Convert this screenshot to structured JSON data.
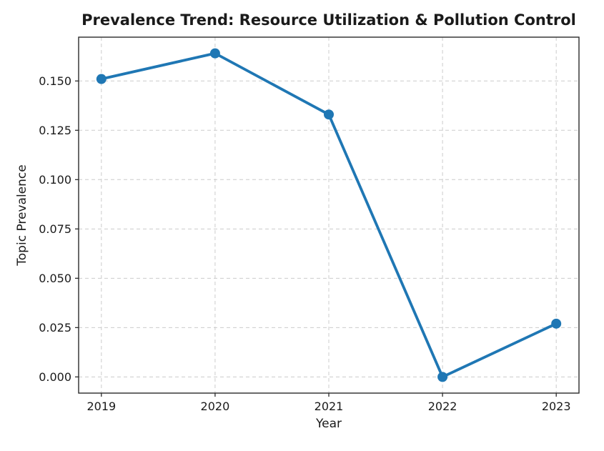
{
  "figure": {
    "background_color": "#ffffff",
    "text_color": "#1a1a1a"
  },
  "chart_data": {
    "type": "line",
    "title": "Prevalence Trend: Resource Utilization & Pollution Control",
    "xlabel": "Year",
    "ylabel": "Topic Prevalence",
    "x": [
      2019,
      2020,
      2021,
      2022,
      2023
    ],
    "series": [
      {
        "name": "Topic Prevalence",
        "values": [
          0.151,
          0.164,
          0.133,
          0.0,
          0.027
        ]
      }
    ],
    "xticks": [
      2019,
      2020,
      2021,
      2022,
      2023
    ],
    "yticks": [
      0.0,
      0.025,
      0.05,
      0.075,
      0.1,
      0.125,
      0.15
    ],
    "ytick_decimals": 3,
    "xlim": [
      2018.8,
      2023.2
    ],
    "ylim": [
      -0.0082,
      0.1722
    ],
    "grid": true,
    "grid_line_style": "dashed",
    "legend_position": "none",
    "line_color": "#1f77b4",
    "marker": "circle",
    "grid_color": "#cccccc",
    "spine_color": "#2b2b2b",
    "tick_color": "#2b2b2b"
  }
}
